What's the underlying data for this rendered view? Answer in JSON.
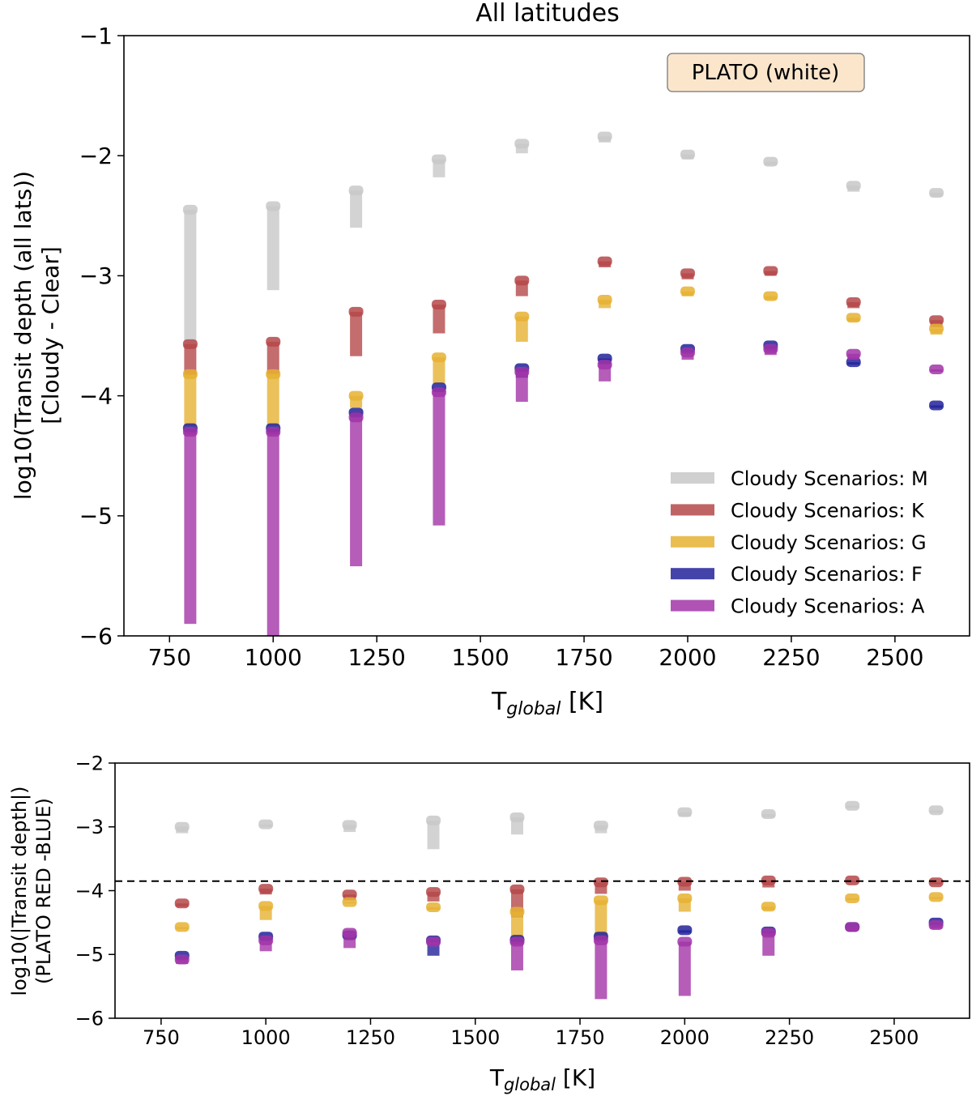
{
  "colors": {
    "M": "#c8c8c8",
    "K": "#b5484a",
    "G": "#e6b233",
    "F": "#22229a",
    "A": "#a235a8"
  },
  "chart_data": [
    {
      "type": "scatter",
      "title": "All latitudes",
      "annotation": "PLATO (white)",
      "xlabel_main": "T",
      "xlabel_sub": "global",
      "xlabel_unit": " [K]",
      "ylabel_lines": [
        "log10(Transit depth  (all lats))",
        "[Cloudy - Clear]"
      ],
      "xlim": [
        640,
        2680
      ],
      "ylim": [
        -6,
        -1
      ],
      "xticks": [
        750,
        1000,
        1250,
        1500,
        1750,
        2000,
        2250,
        2500
      ],
      "yticks": [
        -1,
        -2,
        -3,
        -4,
        -5,
        -6
      ],
      "ytick_labels": [
        "−1",
        "−2",
        "−3",
        "−4",
        "−5",
        "−6"
      ],
      "legend_position": "lower right",
      "legend": [
        "Cloudy Scenarios: M",
        "Cloudy Scenarios: K",
        "Cloudy Scenarios: G",
        "Cloudy Scenarios: F",
        "Cloudy Scenarios: A"
      ],
      "x": [
        800,
        1000,
        1200,
        1400,
        1600,
        1800,
        2000,
        2200,
        2400,
        2600
      ],
      "series": [
        {
          "name": "Cloudy Scenarios: M",
          "key": "M",
          "top": [
            -2.45,
            -2.42,
            -2.29,
            -2.03,
            -1.9,
            -1.84,
            -1.99,
            -2.05,
            -2.25,
            -2.31
          ],
          "bottom": [
            -3.6,
            -3.12,
            -2.6,
            -2.18,
            -1.98,
            -1.89,
            -2.03,
            -2.08,
            -2.3,
            -2.34
          ]
        },
        {
          "name": "Cloudy Scenarios: K",
          "key": "K",
          "top": [
            -3.57,
            -3.55,
            -3.3,
            -3.24,
            -3.04,
            -2.88,
            -2.98,
            -2.96,
            -3.22,
            -3.37
          ],
          "bottom": [
            -3.83,
            -3.82,
            -3.67,
            -3.48,
            -3.17,
            -2.93,
            -3.03,
            -3.0,
            -3.27,
            -3.43
          ]
        },
        {
          "name": "Cloudy Scenarios: G",
          "key": "G",
          "top": [
            -3.82,
            -3.82,
            -4.0,
            -3.68,
            -3.34,
            -3.2,
            -3.13,
            -3.17,
            -3.35,
            -3.44
          ],
          "bottom": [
            -4.25,
            -4.25,
            -4.1,
            -3.9,
            -3.55,
            -3.27,
            -3.17,
            -3.2,
            -3.38,
            -3.49
          ]
        },
        {
          "name": "Cloudy Scenarios: F",
          "key": "F",
          "top": [
            -4.27,
            -4.27,
            -4.14,
            -3.93,
            -3.77,
            -3.69,
            -3.61,
            -3.58,
            -3.72,
            -4.08
          ],
          "bottom": [
            -4.32,
            -4.32,
            -4.18,
            -3.97,
            -3.85,
            -3.74,
            -3.65,
            -3.63,
            -3.74,
            -4.1
          ]
        },
        {
          "name": "Cloudy Scenarios: A",
          "key": "A",
          "top": [
            -4.3,
            -4.3,
            -4.18,
            -3.97,
            -3.8,
            -3.74,
            -3.64,
            -3.61,
            -3.65,
            -3.78
          ],
          "bottom": [
            -5.9,
            -6.0,
            -5.42,
            -5.08,
            -4.05,
            -3.88,
            -3.7,
            -3.66,
            -3.7,
            -3.8
          ]
        }
      ]
    },
    {
      "type": "scatter",
      "xlabel_main": "T",
      "xlabel_sub": "global",
      "xlabel_unit": " [K]",
      "ylabel_lines": [
        "log10(|Transit depth|)",
        "(PLATO RED -BLUE)"
      ],
      "xlim": [
        640,
        2680
      ],
      "ylim": [
        -6,
        -2
      ],
      "xticks": [
        750,
        1000,
        1250,
        1500,
        1750,
        2000,
        2250,
        2500
      ],
      "yticks": [
        -2,
        -3,
        -4,
        -5,
        -6
      ],
      "ytick_labels": [
        "−2",
        "−3",
        "−4",
        "−5",
        "−6"
      ],
      "reference_line_y": -3.85,
      "x": [
        800,
        1000,
        1200,
        1400,
        1600,
        1800,
        2000,
        2200,
        2400,
        2600
      ],
      "series": [
        {
          "name": "Cloudy Scenarios: M",
          "key": "M",
          "top": [
            -3.0,
            -2.96,
            -2.97,
            -2.9,
            -2.85,
            -2.98,
            -2.77,
            -2.8,
            -2.67,
            -2.74
          ],
          "bottom": [
            -3.1,
            -3.0,
            -3.08,
            -3.35,
            -3.12,
            -3.1,
            -2.84,
            -2.85,
            -2.7,
            -2.78
          ]
        },
        {
          "name": "Cloudy Scenarios: K",
          "key": "K",
          "top": [
            -4.2,
            -3.97,
            -4.06,
            -4.02,
            -3.98,
            -3.87,
            -3.86,
            -3.84,
            -3.84,
            -3.87
          ],
          "bottom": [
            -4.25,
            -4.06,
            -4.15,
            -4.17,
            -4.42,
            -4.05,
            -4.0,
            -3.95,
            -3.87,
            -3.9
          ]
        },
        {
          "name": "Cloudy Scenarios: G",
          "key": "G",
          "top": [
            -4.57,
            -4.24,
            -4.18,
            -4.26,
            -4.33,
            -4.15,
            -4.12,
            -4.25,
            -4.12,
            -4.1
          ],
          "bottom": [
            -4.6,
            -4.46,
            -4.2,
            -4.3,
            -4.85,
            -4.77,
            -4.33,
            -4.3,
            -4.15,
            -4.13
          ]
        },
        {
          "name": "Cloudy Scenarios: F",
          "key": "F",
          "top": [
            -5.02,
            -4.72,
            -4.7,
            -4.78,
            -4.77,
            -4.72,
            -4.62,
            -4.64,
            -4.57,
            -4.5
          ],
          "bottom": [
            -5.08,
            -4.78,
            -4.76,
            -5.02,
            -4.82,
            -4.76,
            -4.66,
            -4.67,
            -4.6,
            -4.53
          ]
        },
        {
          "name": "Cloudy Scenarios: A",
          "key": "A",
          "top": [
            -5.08,
            -4.78,
            -4.66,
            -4.8,
            -4.8,
            -4.78,
            -4.8,
            -4.66,
            -4.57,
            -4.54
          ],
          "bottom": [
            -5.15,
            -4.95,
            -4.9,
            -4.85,
            -5.25,
            -5.7,
            -5.65,
            -5.02,
            -4.63,
            -4.6
          ]
        }
      ]
    }
  ]
}
